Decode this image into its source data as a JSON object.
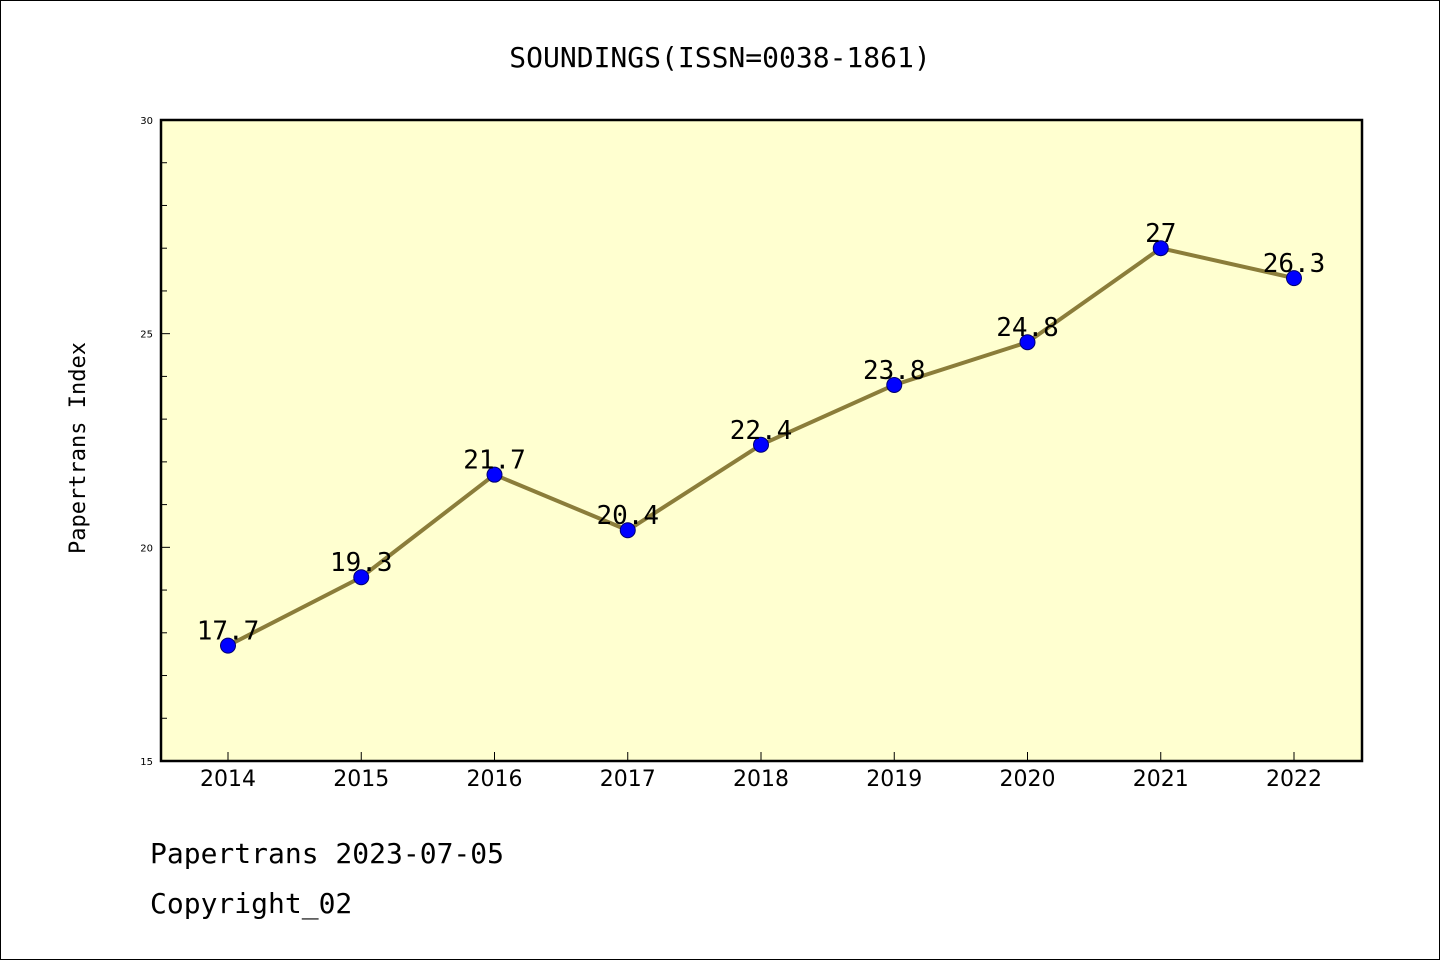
{
  "chart_data": {
    "type": "line",
    "title": "SOUNDINGS(ISSN=0038-1861)",
    "xlabel": "",
    "ylabel": "Papertrans Index",
    "categories": [
      "2014",
      "2015",
      "2016",
      "2017",
      "2018",
      "2019",
      "2020",
      "2021",
      "2022"
    ],
    "series": [
      {
        "values": [
          17.7,
          19.3,
          21.7,
          20.4,
          22.4,
          23.8,
          24.8,
          27,
          26.3
        ],
        "labels": [
          "17.7",
          "19.3",
          "21.7",
          "20.4",
          "22.4",
          "23.8",
          "24.8",
          "27",
          "26.3"
        ],
        "line_color": "#8b7d3a",
        "marker_color": "#0000ff"
      }
    ],
    "ylim": [
      15,
      30
    ],
    "y_ticks": [
      "15",
      "20",
      "25",
      "30"
    ],
    "y_minor_step": 1,
    "grid": false,
    "plot_background": "#ffffd0"
  },
  "footer": {
    "date_line": "Papertrans 2023-07-05",
    "copyright": "Copyright_02"
  }
}
